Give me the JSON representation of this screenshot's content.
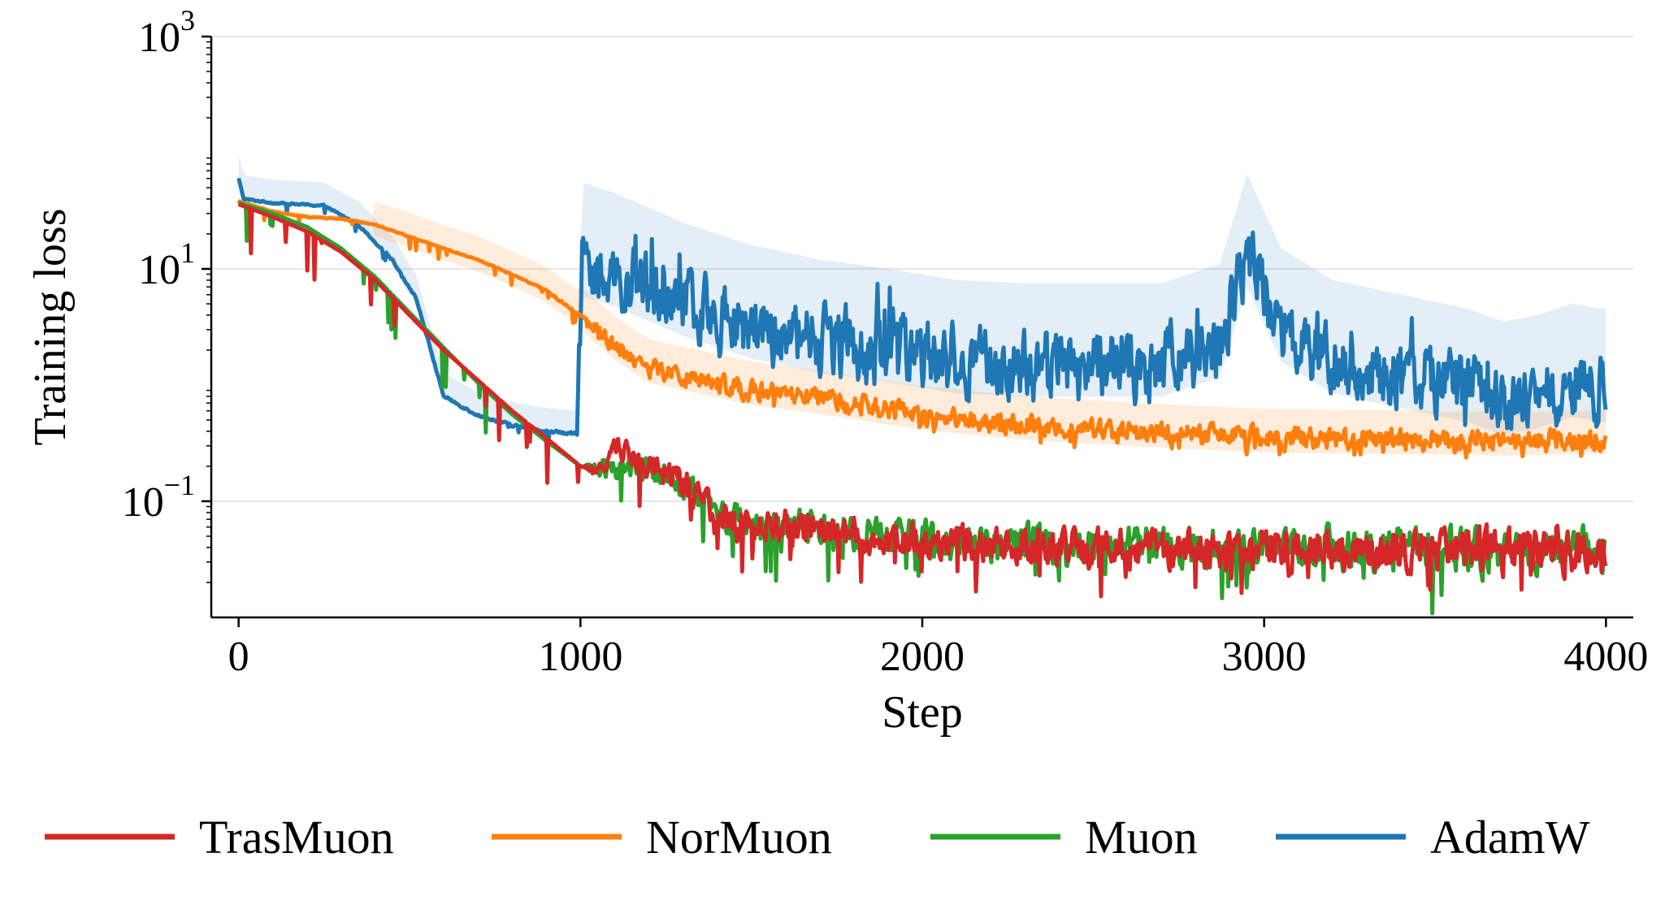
{
  "chart_data": {
    "type": "line",
    "xlabel": "Step",
    "ylabel": "Training loss",
    "yscale": "log",
    "xlim": [
      -80,
      4080
    ],
    "ylim": [
      0.01,
      1000
    ],
    "x_ticks": [
      {
        "value": 0,
        "label": "0"
      },
      {
        "value": 1000,
        "label": "1000"
      },
      {
        "value": 2000,
        "label": "2000"
      },
      {
        "value": 3000,
        "label": "3000"
      },
      {
        "value": 4000,
        "label": "4000"
      }
    ],
    "y_ticks": [
      {
        "value": 1000,
        "base": "10",
        "exp": "3"
      },
      {
        "value": 10,
        "base": "10",
        "exp": "1"
      },
      {
        "value": 0.1,
        "base": "10",
        "exp": "−1"
      }
    ],
    "grid": "horizontal",
    "legend_position": "bottom",
    "series": [
      {
        "name": "TrasMuon",
        "color": "#d62728",
        "points": [
          [
            0,
            36
          ],
          [
            100,
            28
          ],
          [
            200,
            21
          ],
          [
            300,
            14
          ],
          [
            400,
            8
          ],
          [
            500,
            4
          ],
          [
            600,
            2
          ],
          [
            700,
            1.1
          ],
          [
            800,
            0.6
          ],
          [
            900,
            0.35
          ],
          [
            1000,
            0.2
          ],
          [
            1060,
            0.18
          ],
          [
            1100,
            0.3
          ],
          [
            1200,
            0.2
          ],
          [
            1300,
            0.14
          ],
          [
            1400,
            0.07
          ],
          [
            1500,
            0.06
          ],
          [
            1700,
            0.055
          ],
          [
            2000,
            0.045
          ],
          [
            2500,
            0.04
          ],
          [
            3000,
            0.038
          ],
          [
            3500,
            0.037
          ],
          [
            4000,
            0.036
          ]
        ],
        "noise": [
          [
            0,
            0
          ],
          [
            1000,
            0
          ],
          [
            1050,
            0.1
          ],
          [
            1300,
            0.22
          ],
          [
            4000,
            0.28
          ]
        ],
        "dips": 0.4
      },
      {
        "name": "NorMuon",
        "color": "#ff7f0e",
        "points": [
          [
            0,
            38
          ],
          [
            100,
            31
          ],
          [
            200,
            28
          ],
          [
            300,
            27
          ],
          [
            400,
            24
          ],
          [
            500,
            19
          ],
          [
            600,
            15
          ],
          [
            700,
            12
          ],
          [
            800,
            9
          ],
          [
            900,
            6.5
          ],
          [
            1000,
            4
          ],
          [
            1100,
            2.2
          ],
          [
            1200,
            1.4
          ],
          [
            1300,
            1.2
          ],
          [
            1500,
            0.9
          ],
          [
            1700,
            0.75
          ],
          [
            2000,
            0.55
          ],
          [
            2300,
            0.45
          ],
          [
            2600,
            0.4
          ],
          [
            3000,
            0.35
          ],
          [
            3400,
            0.34
          ],
          [
            3700,
            0.33
          ],
          [
            4000,
            0.34
          ]
        ],
        "noise": [
          [
            0,
            0.005
          ],
          [
            800,
            0.008
          ],
          [
            1000,
            0.02
          ],
          [
            1050,
            0.12
          ],
          [
            1400,
            0.12
          ],
          [
            2000,
            0.13
          ],
          [
            4000,
            0.14
          ]
        ],
        "dips": 0.12
      },
      {
        "name": "Muon",
        "color": "#2ca02c",
        "points": [
          [
            0,
            37
          ],
          [
            100,
            30
          ],
          [
            200,
            23
          ],
          [
            300,
            15
          ],
          [
            400,
            8.5
          ],
          [
            500,
            4.2
          ],
          [
            600,
            2.1
          ],
          [
            700,
            1.05
          ],
          [
            800,
            0.56
          ],
          [
            900,
            0.33
          ],
          [
            1000,
            0.2
          ],
          [
            1100,
            0.19
          ],
          [
            1200,
            0.18
          ],
          [
            1300,
            0.13
          ],
          [
            1400,
            0.08
          ],
          [
            1500,
            0.065
          ],
          [
            1700,
            0.055
          ],
          [
            2000,
            0.047
          ],
          [
            2500,
            0.042
          ],
          [
            3000,
            0.04
          ],
          [
            3500,
            0.038
          ],
          [
            4000,
            0.037
          ]
        ],
        "noise": [
          [
            0,
            0
          ],
          [
            1000,
            0
          ],
          [
            1050,
            0.12
          ],
          [
            1300,
            0.22
          ],
          [
            4000,
            0.28
          ]
        ],
        "dips": 0.4
      },
      {
        "name": "AdamW",
        "color": "#1f77b4",
        "points": [
          [
            0,
            60
          ],
          [
            15,
            40
          ],
          [
            100,
            37
          ],
          [
            250,
            35
          ],
          [
            350,
            24
          ],
          [
            450,
            12
          ],
          [
            520,
            5.5
          ],
          [
            600,
            0.8
          ],
          [
            700,
            0.55
          ],
          [
            800,
            0.45
          ],
          [
            900,
            0.4
          ],
          [
            990,
            0.38
          ],
          [
            1005,
            11
          ],
          [
            1100,
            9
          ],
          [
            1300,
            5
          ],
          [
            1500,
            3.2
          ],
          [
            1700,
            2.4
          ],
          [
            1900,
            2
          ],
          [
            2100,
            1.6
          ],
          [
            2300,
            1.5
          ],
          [
            2500,
            1.5
          ],
          [
            2700,
            1.5
          ],
          [
            2870,
            2.2
          ],
          [
            2950,
            13
          ],
          [
            3050,
            3
          ],
          [
            3200,
            1.6
          ],
          [
            3400,
            1.2
          ],
          [
            3600,
            0.9
          ],
          [
            3700,
            0.7
          ],
          [
            3800,
            0.8
          ],
          [
            3900,
            1
          ],
          [
            4000,
            0.9
          ]
        ],
        "noise": [
          [
            0,
            0.01
          ],
          [
            990,
            0.02
          ],
          [
            1000,
            0.45
          ],
          [
            4000,
            0.45
          ]
        ],
        "dips": 0.15
      }
    ]
  }
}
